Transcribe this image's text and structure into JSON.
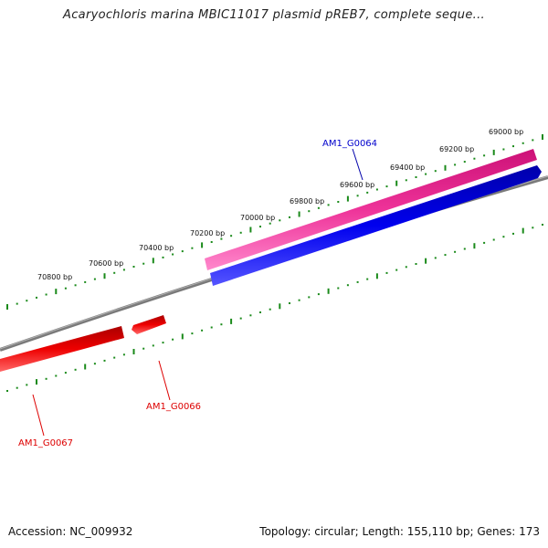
{
  "title": "Acaryochloris marina MBIC11017 plasmid pREB7, complete seque...",
  "footer": {
    "accession": "Accession: NC_009932",
    "topology": "Topology: circular; Length: 155,110 bp; Genes: 173"
  },
  "ticks": [
    "69000 bp",
    "69200 bp",
    "69400 bp",
    "69600 bp",
    "69800 bp",
    "70000 bp",
    "70200 bp",
    "70400 bp",
    "70600 bp",
    "70800 bp"
  ],
  "genes": [
    {
      "name": "AM1_G0064",
      "color": "#0000cc",
      "strand": "forward"
    },
    {
      "name": "AM1_G0066",
      "color": "#dd0000",
      "strand": "reverse"
    },
    {
      "name": "AM1_G0067",
      "color": "#dd0000",
      "strand": "reverse"
    }
  ],
  "colors": {
    "backbone": "#808080",
    "tick": "#1a8a1a",
    "forward_gene": "#0000ee",
    "reverse_gene": "#ee0000",
    "feature_magenta": "#ee3399"
  }
}
